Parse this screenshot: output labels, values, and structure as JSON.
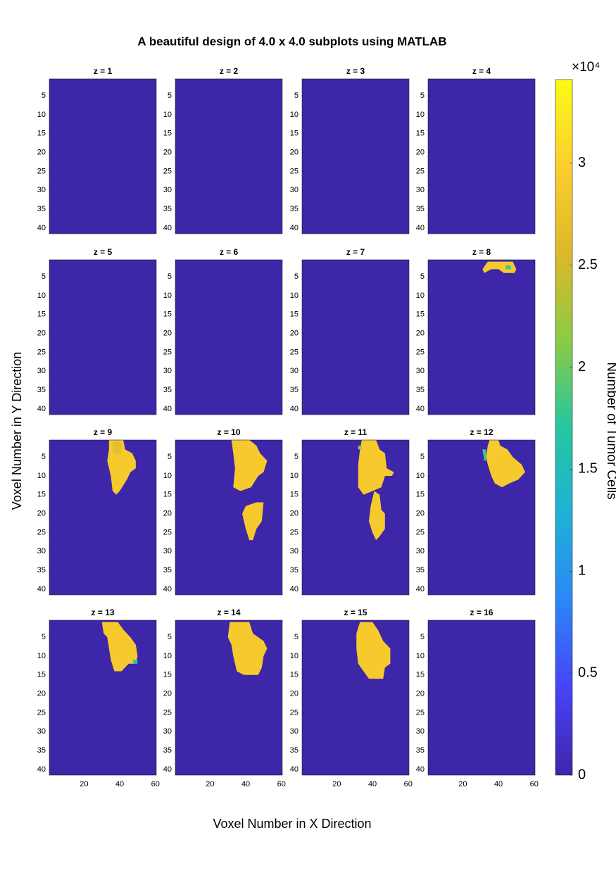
{
  "chart_data": {
    "type": "heatmap-grid",
    "title": "A beautiful design of 4.0 x 4.0 subplots using MATLAB",
    "xlabel": "Voxel Number in X Direction",
    "ylabel": "Voxel Number in Y Direction",
    "xlim": [
      0.5,
      60.5
    ],
    "ylim": [
      0.5,
      41.5
    ],
    "y_reversed": true,
    "xticks": [
      20,
      40,
      60
    ],
    "yticks": [
      5,
      10,
      15,
      20,
      25,
      30,
      35,
      40
    ],
    "background": 0,
    "colormap": [
      "#3e26a8",
      "#4743f8",
      "#2c87f5",
      "#1fb1d6",
      "#25c79f",
      "#8bcb45",
      "#ddb82a",
      "#fcce2e",
      "#f9fb15"
    ],
    "colorbar": {
      "label": "Number of Tumor Cells",
      "exponent_label": "×10⁴",
      "clim": [
        0,
        34100
      ],
      "ticks": [
        {
          "value": 0,
          "label": "0"
        },
        {
          "value": 5000,
          "label": "0.5"
        },
        {
          "value": 10000,
          "label": "1"
        },
        {
          "value": 15000,
          "label": "1.5"
        },
        {
          "value": 20000,
          "label": "2"
        },
        {
          "value": 25000,
          "label": "2.5"
        },
        {
          "value": 30000,
          "label": "3"
        }
      ]
    },
    "subplots": [
      {
        "title": "z = 1",
        "regions": []
      },
      {
        "title": "z = 2",
        "regions": []
      },
      {
        "title": "z = 3",
        "regions": []
      },
      {
        "title": "z = 4",
        "regions": []
      },
      {
        "title": "z = 5",
        "regions": []
      },
      {
        "title": "z = 6",
        "regions": []
      },
      {
        "title": "z = 7",
        "regions": []
      },
      {
        "title": "z = 8",
        "regions": [
          {
            "value": 29000,
            "points": [
              [
                31,
                3
              ],
              [
                34,
                1
              ],
              [
                48,
                1
              ],
              [
                50,
                3
              ],
              [
                49,
                4
              ],
              [
                43,
                4
              ],
              [
                40,
                3
              ],
              [
                36,
                3
              ],
              [
                32,
                4
              ]
            ]
          },
          {
            "value": 18000,
            "points": [
              [
                44,
                2
              ],
              [
                47,
                2
              ],
              [
                47,
                3
              ],
              [
                44,
                3
              ]
            ]
          }
        ]
      },
      {
        "title": "z = 9",
        "regions": [
          {
            "value": 29000,
            "points": [
              [
                34,
                0.5
              ],
              [
                42,
                0.5
              ],
              [
                43,
                3
              ],
              [
                47,
                4
              ],
              [
                49,
                6
              ],
              [
                49,
                8
              ],
              [
                46,
                9
              ],
              [
                44,
                11
              ],
              [
                40,
                14
              ],
              [
                38,
                15
              ],
              [
                36,
                14
              ],
              [
                35,
                10
              ],
              [
                33,
                6
              ],
              [
                34,
                3
              ]
            ]
          },
          {
            "value": 27000,
            "points": [
              [
                36,
                1
              ],
              [
                41,
                1
              ],
              [
                41,
                4
              ],
              [
                36,
                4
              ]
            ]
          }
        ]
      },
      {
        "title": "z = 10",
        "regions": [
          {
            "value": 29000,
            "points": [
              [
                32,
                0.5
              ],
              [
                42,
                0.5
              ],
              [
                46,
                2
              ],
              [
                48,
                4
              ],
              [
                52,
                6
              ],
              [
                50,
                9
              ],
              [
                47,
                10
              ],
              [
                43,
                13
              ],
              [
                37,
                14
              ],
              [
                33,
                13
              ],
              [
                34,
                8
              ],
              [
                33,
                4
              ]
            ]
          },
          {
            "value": 29000,
            "points": [
              [
                46,
                17
              ],
              [
                50,
                17
              ],
              [
                49,
                22
              ],
              [
                46,
                24
              ],
              [
                44,
                27
              ],
              [
                42,
                27
              ],
              [
                40,
                24
              ],
              [
                38,
                20
              ],
              [
                40,
                18
              ]
            ]
          }
        ]
      },
      {
        "title": "z = 11",
        "regions": [
          {
            "value": 29000,
            "points": [
              [
                34,
                0.5
              ],
              [
                42,
                0.5
              ],
              [
                44,
                3
              ],
              [
                47,
                4
              ],
              [
                48,
                8
              ],
              [
                52,
                9
              ],
              [
                51,
                10
              ],
              [
                47,
                10
              ],
              [
                45,
                13
              ],
              [
                40,
                14
              ],
              [
                35,
                15
              ],
              [
                32,
                13
              ],
              [
                32,
                7
              ],
              [
                33,
                3
              ]
            ]
          },
          {
            "value": 22000,
            "points": [
              [
                32,
                2
              ],
              [
                34,
                2
              ],
              [
                34,
                3
              ],
              [
                32,
                3
              ]
            ]
          },
          {
            "value": 29000,
            "points": [
              [
                41,
                14
              ],
              [
                44,
                15
              ],
              [
                45,
                19
              ],
              [
                47,
                20
              ],
              [
                47,
                24
              ],
              [
                44,
                26
              ],
              [
                42,
                27
              ],
              [
                40,
                25
              ],
              [
                38,
                22
              ],
              [
                39,
                18
              ]
            ]
          }
        ]
      },
      {
        "title": "z = 12",
        "regions": [
          {
            "value": 29000,
            "points": [
              [
                35,
                0.5
              ],
              [
                40,
                0.5
              ],
              [
                41,
                2
              ],
              [
                45,
                3
              ],
              [
                48,
                5
              ],
              [
                53,
                7
              ],
              [
                55,
                9
              ],
              [
                51,
                11
              ],
              [
                46,
                12
              ],
              [
                42,
                13
              ],
              [
                38,
                12
              ],
              [
                36,
                10
              ],
              [
                34,
                7
              ],
              [
                33,
                5
              ],
              [
                34,
                2
              ]
            ]
          },
          {
            "value": 18000,
            "points": [
              [
                31,
                3
              ],
              [
                33,
                3
              ],
              [
                33,
                6
              ],
              [
                32,
                6
              ]
            ]
          }
        ]
      },
      {
        "title": "z = 13",
        "regions": [
          {
            "value": 29000,
            "points": [
              [
                30,
                1
              ],
              [
                39,
                1
              ],
              [
                42,
                3
              ],
              [
                46,
                5
              ],
              [
                49,
                7
              ],
              [
                50,
                10
              ],
              [
                49,
                12
              ],
              [
                45,
                12
              ],
              [
                43,
                13
              ],
              [
                41,
                14
              ],
              [
                37,
                14
              ],
              [
                35,
                11
              ],
              [
                34,
                8
              ],
              [
                33,
                5
              ],
              [
                31,
                4
              ]
            ]
          },
          {
            "value": 16000,
            "points": [
              [
                47,
                11
              ],
              [
                50,
                11
              ],
              [
                50,
                12
              ],
              [
                48,
                12
              ]
            ]
          }
        ]
      },
      {
        "title": "z = 14",
        "regions": [
          {
            "value": 29000,
            "points": [
              [
                31,
                1
              ],
              [
                42,
                1
              ],
              [
                44,
                4
              ],
              [
                50,
                6
              ],
              [
                52,
                8
              ],
              [
                50,
                10
              ],
              [
                49,
                13
              ],
              [
                47,
                15
              ],
              [
                39,
                15
              ],
              [
                35,
                14
              ],
              [
                33,
                10
              ],
              [
                32,
                7
              ],
              [
                30,
                5
              ]
            ]
          }
        ]
      },
      {
        "title": "z = 15",
        "regions": [
          {
            "value": 29000,
            "points": [
              [
                33,
                1
              ],
              [
                40,
                1
              ],
              [
                43,
                3
              ],
              [
                46,
                6
              ],
              [
                50,
                8
              ],
              [
                50,
                12
              ],
              [
                47,
                13
              ],
              [
                46,
                16
              ],
              [
                38,
                16
              ],
              [
                35,
                14
              ],
              [
                32,
                12
              ],
              [
                31,
                8
              ],
              [
                31,
                4
              ]
            ]
          }
        ]
      },
      {
        "title": "z = 16",
        "regions": []
      }
    ]
  }
}
